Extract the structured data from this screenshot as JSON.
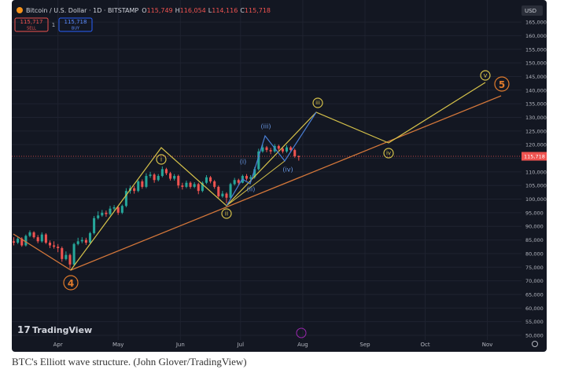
{
  "header": {
    "symbol": "Bitcoin / U.S. Dollar · 1D · BITSTAMP",
    "ohlc": [
      {
        "key": "O",
        "value": "115,749"
      },
      {
        "key": "H",
        "value": "116,054"
      },
      {
        "key": "L",
        "value": "114,116"
      },
      {
        "key": "C",
        "value": "115,718"
      }
    ],
    "sell": {
      "price": "115,717",
      "label": "SELL"
    },
    "spread": "1",
    "buy": {
      "price": "115,718",
      "label": "BUY"
    },
    "currency": "USD"
  },
  "watermark": "TradingView",
  "waves": [
    "4",
    "i",
    "ii",
    "(i)",
    "(ii)",
    "(iii)",
    "(iv)",
    "iii",
    "iv",
    "v",
    "5"
  ],
  "caption": "BTC's Elliott wave structure. (John Glover/TradingView)",
  "chart_data": {
    "type": "candlestick",
    "up_color": "#26a69a",
    "down_color": "#ef5350",
    "grid": true,
    "last_price": {
      "value": 115718,
      "label": "115,718"
    },
    "xlim": [
      -0.5,
      126.5
    ],
    "xticks": [
      {
        "value": 11,
        "label": "Apr"
      },
      {
        "value": 26,
        "label": "May"
      },
      {
        "value": 41.5,
        "label": "Jun"
      },
      {
        "value": 56.5,
        "label": "Jul"
      },
      {
        "value": 72,
        "label": "Aug"
      },
      {
        "value": 87.5,
        "label": "Sep"
      },
      {
        "value": 102.5,
        "label": "Oct"
      },
      {
        "value": 118,
        "label": "Nov"
      }
    ],
    "ylim": [
      44800,
      173100
    ],
    "yticks": [
      {
        "value": 50000,
        "label": "50,000"
      },
      {
        "value": 55000,
        "label": "55,000"
      },
      {
        "value": 60000,
        "label": "60,000"
      },
      {
        "value": 65000,
        "label": "65,000"
      },
      {
        "value": 70000,
        "label": "70,000"
      },
      {
        "value": 75000,
        "label": "75,000"
      },
      {
        "value": 80000,
        "label": "80,000"
      },
      {
        "value": 85000,
        "label": "85,000"
      },
      {
        "value": 90000,
        "label": "90,000"
      },
      {
        "value": 95000,
        "label": "95,000"
      },
      {
        "value": 100000,
        "label": "100,000"
      },
      {
        "value": 105000,
        "label": "105,000"
      },
      {
        "value": 110000,
        "label": "110,000"
      },
      {
        "value": 115000,
        "label": "115,000"
      },
      {
        "value": 120000,
        "label": "120,000"
      },
      {
        "value": 125000,
        "label": "125,000"
      },
      {
        "value": 130000,
        "label": "130,000"
      },
      {
        "value": 135000,
        "label": "135,000"
      },
      {
        "value": 140000,
        "label": "140,000"
      },
      {
        "value": 145000,
        "label": "145,000"
      },
      {
        "value": 150000,
        "label": "150,000"
      },
      {
        "value": 155000,
        "label": "155,000"
      },
      {
        "value": 160000,
        "label": "160,000"
      },
      {
        "value": 165000,
        "label": "165,000"
      }
    ],
    "values": [
      [
        84500,
        86000,
        83000,
        84000
      ],
      [
        84000,
        86200,
        83500,
        85500
      ],
      [
        85500,
        86000,
        82500,
        83000
      ],
      [
        83000,
        87000,
        82600,
        86500
      ],
      [
        86500,
        88500,
        86000,
        87800
      ],
      [
        87800,
        88200,
        85500,
        86000
      ],
      [
        86000,
        86800,
        83800,
        84500
      ],
      [
        84500,
        87800,
        84000,
        87000
      ],
      [
        87000,
        87500,
        83500,
        84000
      ],
      [
        84000,
        84800,
        82000,
        83000
      ],
      [
        83000,
        84500,
        81800,
        82500
      ],
      [
        82500,
        83500,
        80500,
        82000
      ],
      [
        82000,
        82600,
        77000,
        78000
      ],
      [
        78000,
        80800,
        77500,
        79500
      ],
      [
        79500,
        80000,
        74500,
        76000
      ],
      [
        76000,
        84000,
        75500,
        83500
      ],
      [
        83500,
        85800,
        83000,
        84500
      ],
      [
        84500,
        86000,
        83800,
        85000
      ],
      [
        85000,
        85800,
        83200,
        84000
      ],
      [
        84000,
        88000,
        83500,
        87500
      ],
      [
        87500,
        93800,
        87000,
        93000
      ],
      [
        93000,
        95500,
        92500,
        94000
      ],
      [
        94000,
        96000,
        93500,
        95000
      ],
      [
        95000,
        95800,
        93500,
        94500
      ],
      [
        94500,
        97500,
        94000,
        96500
      ],
      [
        96500,
        97800,
        95800,
        97000
      ],
      [
        97000,
        97500,
        94200,
        95000
      ],
      [
        95000,
        98000,
        94500,
        97500
      ],
      [
        97500,
        104000,
        97000,
        103000
      ],
      [
        103000,
        105000,
        102000,
        104000
      ],
      [
        104000,
        104800,
        102000,
        103000
      ],
      [
        103000,
        107000,
        102500,
        106500
      ],
      [
        106500,
        107200,
        103800,
        104500
      ],
      [
        104500,
        109500,
        104000,
        108500
      ],
      [
        108500,
        110000,
        107800,
        109000
      ],
      [
        109000,
        109500,
        106000,
        107000
      ],
      [
        107000,
        109200,
        106500,
        108500
      ],
      [
        108500,
        112000,
        108000,
        111000
      ],
      [
        111000,
        111500,
        108800,
        109500
      ],
      [
        109500,
        110000,
        106800,
        107500
      ],
      [
        107500,
        109200,
        106800,
        108500
      ],
      [
        108500,
        109000,
        104000,
        105000
      ],
      [
        105000,
        106000,
        103500,
        104500
      ],
      [
        104500,
        106800,
        104000,
        106000
      ],
      [
        106000,
        106500,
        103800,
        104500
      ],
      [
        104500,
        106200,
        104000,
        105500
      ],
      [
        105500,
        106000,
        101800,
        103000
      ],
      [
        103000,
        106500,
        102500,
        106000
      ],
      [
        106000,
        108800,
        105500,
        108000
      ],
      [
        108000,
        108500,
        105800,
        106500
      ],
      [
        106500,
        107000,
        103800,
        104500
      ],
      [
        104500,
        105000,
        100500,
        101000
      ],
      [
        101000,
        103000,
        100500,
        102000
      ],
      [
        102000,
        102500,
        98500,
        100500
      ],
      [
        100500,
        106000,
        100000,
        105500
      ],
      [
        105500,
        107800,
        105000,
        107000
      ],
      [
        107000,
        107500,
        105200,
        106000
      ],
      [
        106000,
        109000,
        105800,
        108500
      ],
      [
        108500,
        109200,
        106800,
        107500
      ],
      [
        107500,
        108800,
        107000,
        108000
      ],
      [
        108000,
        111800,
        107500,
        111000
      ],
      [
        111000,
        118500,
        110500,
        117500
      ],
      [
        117500,
        120000,
        117000,
        119000
      ],
      [
        119000,
        119500,
        117200,
        118000
      ],
      [
        118000,
        118800,
        116500,
        117500
      ],
      [
        117500,
        120200,
        117000,
        119500
      ],
      [
        119500,
        120000,
        117800,
        118500
      ],
      [
        118500,
        119000,
        116800,
        117500
      ],
      [
        117500,
        119800,
        117000,
        119000
      ],
      [
        119000,
        119500,
        117200,
        118000
      ],
      [
        118000,
        118500,
        115200,
        115749
      ],
      [
        115749,
        116054,
        114116,
        115718
      ]
    ]
  }
}
